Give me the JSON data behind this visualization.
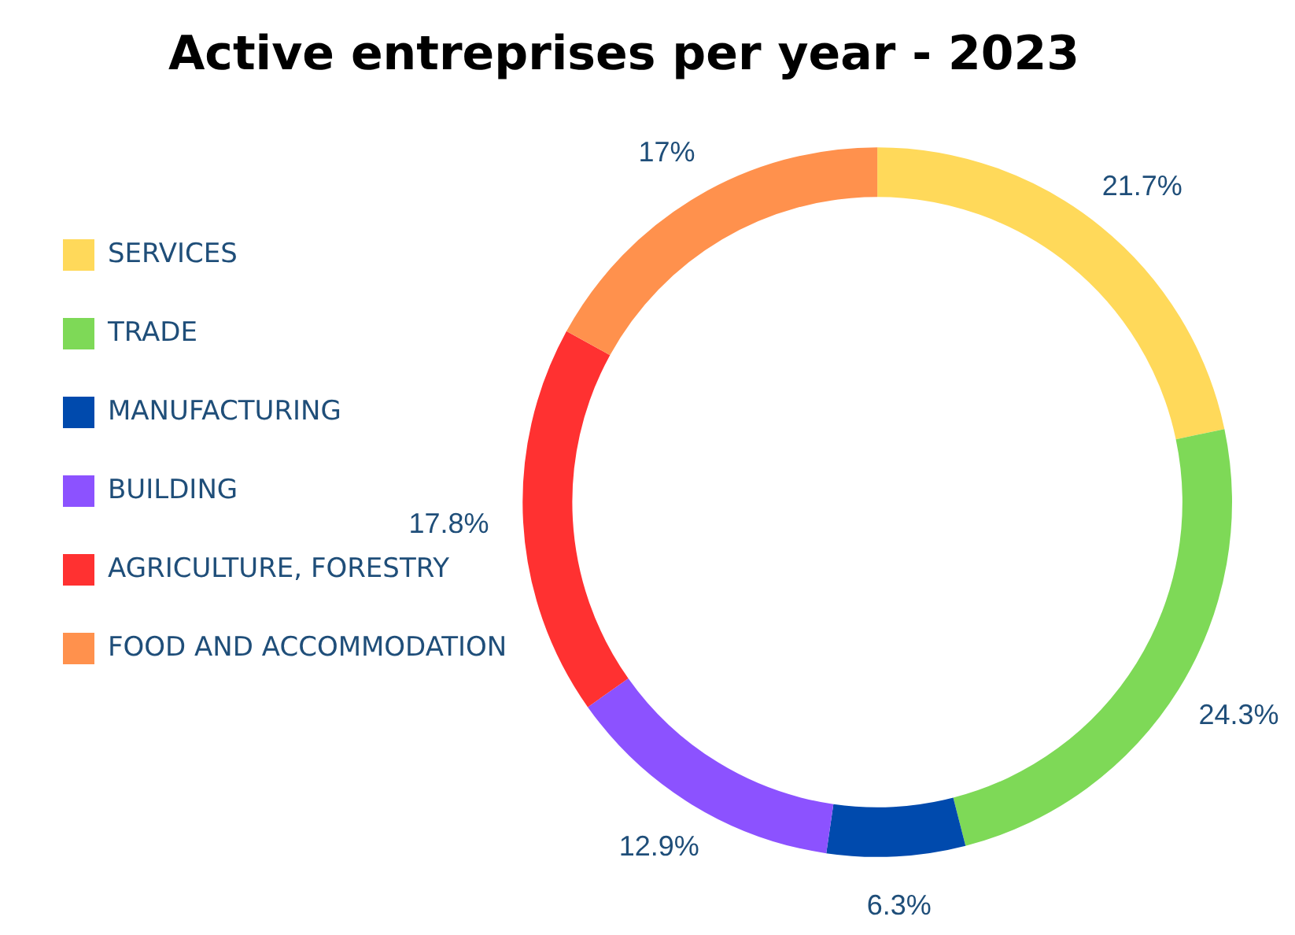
{
  "chart_data": {
    "type": "donut",
    "title": "Active entreprises per year - 2023",
    "categories": [
      "SERVICES",
      "TRADE",
      "MANUFACTURING",
      "BUILDING",
      "AGRICULTURE, FORESTRY",
      "FOOD AND ACCOMMODATION"
    ],
    "values": [
      21.7,
      24.3,
      6.3,
      12.9,
      17.8,
      17
    ],
    "colors": [
      "#ffd95a",
      "#7ed957",
      "#004aad",
      "#8c52ff",
      "#ff3131",
      "#ff914d"
    ],
    "value_labels": [
      "21.7%",
      "24.3%",
      "6.3%",
      "12.9%",
      "17.8%",
      "17%"
    ],
    "legend": "left"
  }
}
